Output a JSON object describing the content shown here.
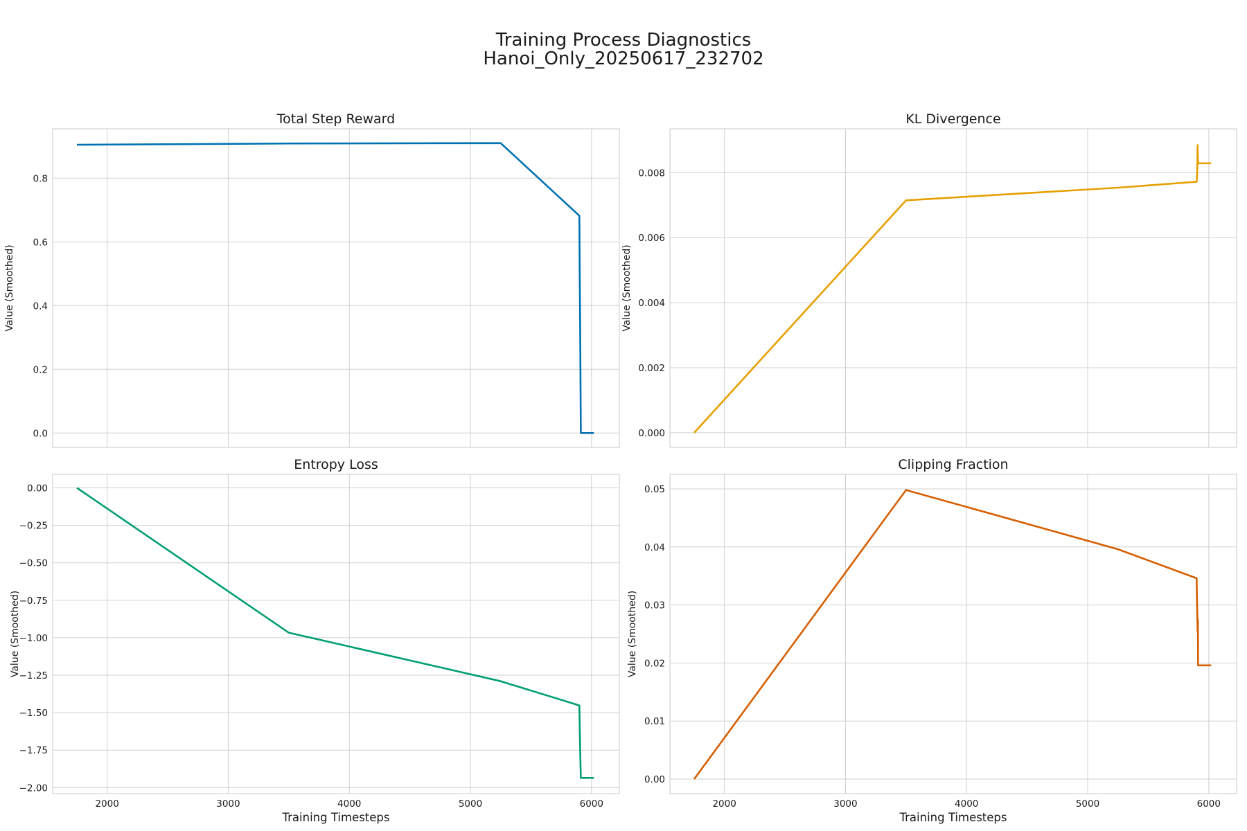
{
  "figure": {
    "title_line1": "Training Process Diagnostics",
    "title_line2": "Hanoi_Only_20250617_232702"
  },
  "chart_data": [
    {
      "type": "line",
      "title": "Total Step Reward",
      "xlabel": "",
      "ylabel": "Value (Smoothed)",
      "xlim": [
        1550,
        6230
      ],
      "ylim": [
        -0.045,
        0.955
      ],
      "xticks": [
        2000,
        3000,
        4000,
        5000,
        6000
      ],
      "yticks": [
        0.0,
        0.2,
        0.4,
        0.6,
        0.8
      ],
      "ytick_labels": [
        "0.0",
        "0.2",
        "0.4",
        "0.6",
        "0.8"
      ],
      "grid": true,
      "series": [
        {
          "color": "#0072b2",
          "x": [
            1750,
            3500,
            5250,
            5900,
            5903,
            5908,
            5912,
            5915,
            6020
          ],
          "y": [
            0.905,
            0.909,
            0.91,
            0.682,
            0.5,
            0.25,
            0.0,
            0.0,
            0.0
          ]
        }
      ]
    },
    {
      "type": "line",
      "title": "KL Divergence",
      "xlabel": "",
      "ylabel": "Value (Smoothed)",
      "xlim": [
        1550,
        6230
      ],
      "ylim": [
        -0.00045,
        0.00935
      ],
      "xticks": [
        2000,
        3000,
        4000,
        5000,
        6000
      ],
      "yticks": [
        0.0,
        0.002,
        0.004,
        0.006,
        0.008
      ],
      "ytick_labels": [
        "0.000",
        "0.002",
        "0.004",
        "0.006",
        "0.008"
      ],
      "grid": true,
      "series": [
        {
          "color": "#e69f00",
          "x": [
            1750,
            3500,
            5250,
            5900,
            5903,
            5905,
            5906,
            5908,
            5910,
            5913,
            6020
          ],
          "y": [
            0.0,
            0.00715,
            0.00754,
            0.00772,
            0.0079,
            0.0081,
            0.00835,
            0.00885,
            0.0084,
            0.00829,
            0.00829
          ]
        }
      ]
    },
    {
      "type": "line",
      "title": "Entropy Loss",
      "xlabel": "Training Timesteps",
      "ylabel": "Value (Smoothed)",
      "xlim": [
        1550,
        6230
      ],
      "ylim": [
        -2.04,
        0.09
      ],
      "xticks": [
        2000,
        3000,
        4000,
        5000,
        6000
      ],
      "xtick_labels": [
        "2000",
        "3000",
        "4000",
        "5000",
        "6000"
      ],
      "yticks": [
        0.0,
        -0.25,
        -0.5,
        -0.75,
        -1.0,
        -1.25,
        -1.5,
        -1.75,
        -2.0
      ],
      "ytick_labels": [
        "0.00",
        "−0.25",
        "−0.50",
        "−0.75",
        "−1.00",
        "−1.25",
        "−1.50",
        "−1.75",
        "−2.00"
      ],
      "grid": true,
      "series": [
        {
          "color": "#009e73",
          "x": [
            1750,
            3500,
            5250,
            5900,
            5903,
            5908,
            5912,
            5915,
            6020
          ],
          "y": [
            0.0,
            -0.966,
            -1.29,
            -1.452,
            -1.6,
            -1.8,
            -1.935,
            -1.935,
            -1.935
          ]
        }
      ]
    },
    {
      "type": "line",
      "title": "Clipping Fraction",
      "xlabel": "Training Timesteps",
      "ylabel": "Value (Smoothed)",
      "xlim": [
        1550,
        6230
      ],
      "ylim": [
        -0.0025,
        0.0525
      ],
      "xticks": [
        2000,
        3000,
        4000,
        5000,
        6000
      ],
      "xtick_labels": [
        "2000",
        "3000",
        "4000",
        "5000",
        "6000"
      ],
      "yticks": [
        0.0,
        0.01,
        0.02,
        0.03,
        0.04,
        0.05
      ],
      "ytick_labels": [
        "0.00",
        "0.01",
        "0.02",
        "0.03",
        "0.04",
        "0.05"
      ],
      "grid": true,
      "series": [
        {
          "color": "#d55e00",
          "x": [
            1750,
            3500,
            5250,
            5900,
            5903,
            5906,
            5908,
            5910,
            5912,
            5915,
            6020
          ],
          "y": [
            0.0,
            0.0498,
            0.0396,
            0.0346,
            0.031,
            0.0275,
            0.0255,
            0.0275,
            0.0196,
            0.0196,
            0.0196
          ]
        }
      ]
    }
  ]
}
